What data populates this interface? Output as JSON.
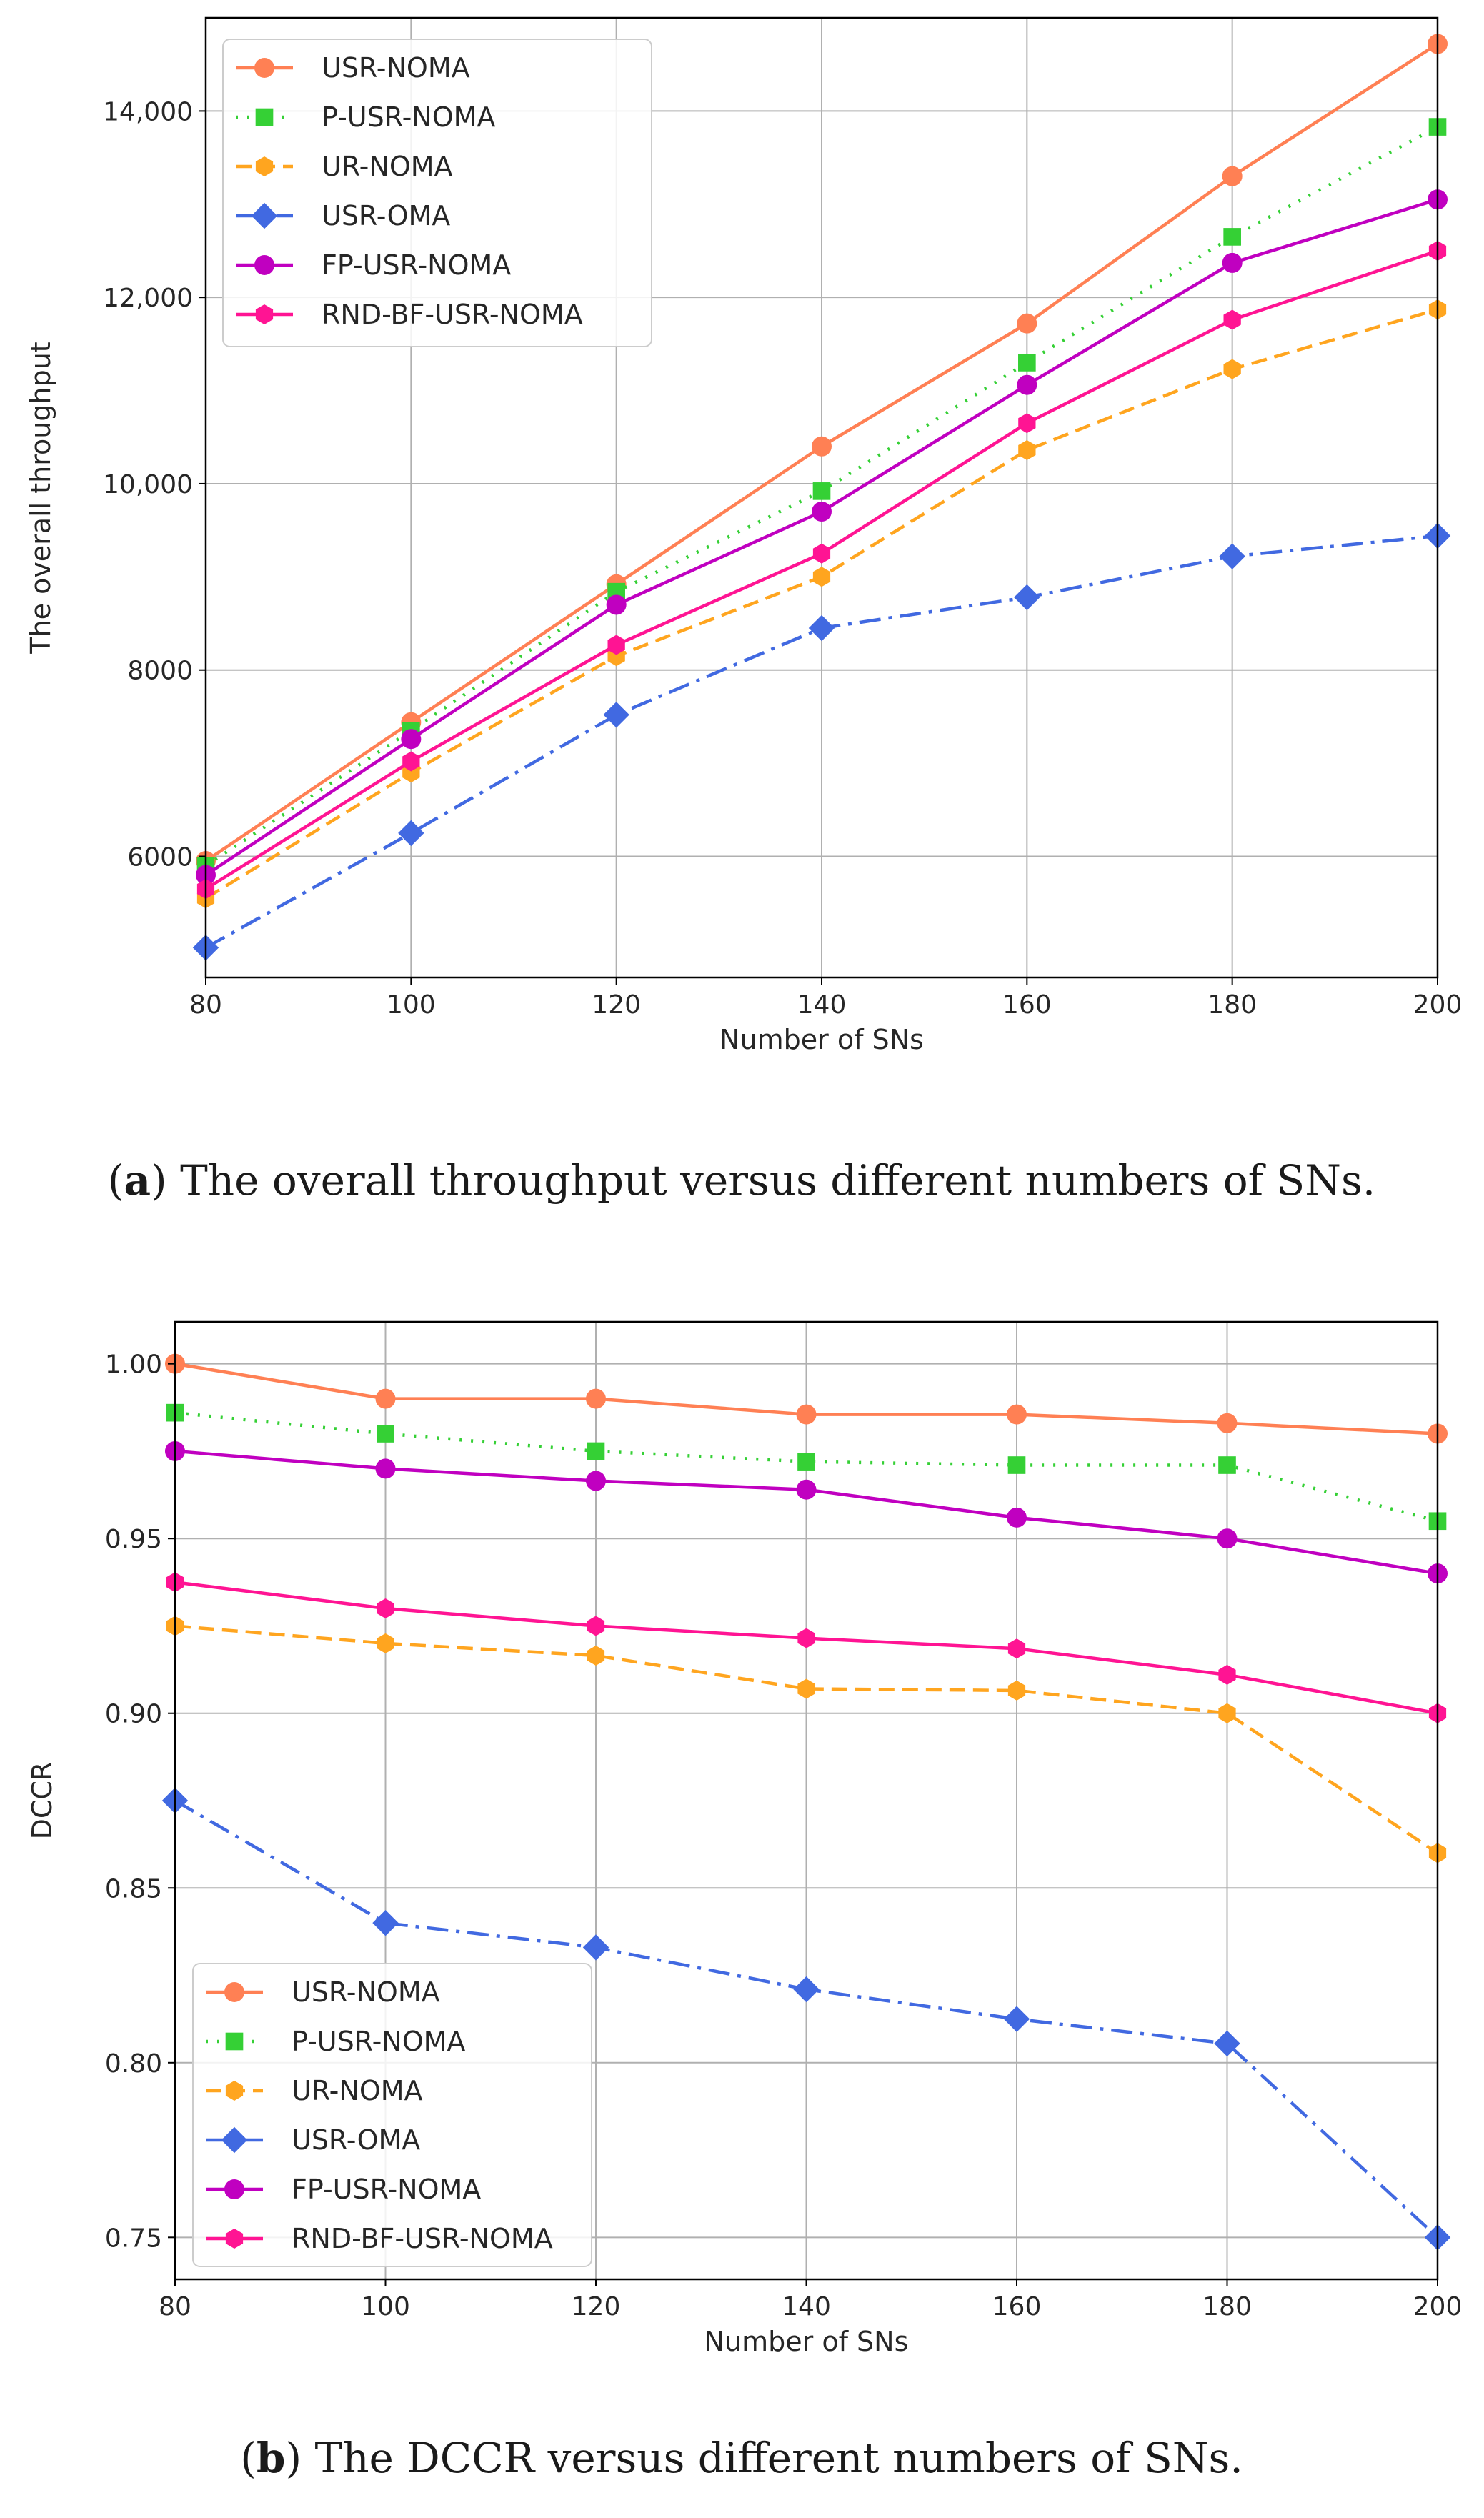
{
  "styles": {
    "USR-NOMA": {
      "color": "#ff8054",
      "dash": "",
      "marker": "circle"
    },
    "P-USR-NOMA": {
      "color": "#35d035",
      "dash": "3 13",
      "marker": "square"
    },
    "UR-NOMA": {
      "color": "#ffa51f",
      "dash": "22 11",
      "marker": "hexagon"
    },
    "USR-OMA": {
      "color": "#4169e1",
      "dash": "30 11 5 11",
      "marker": "diamond"
    },
    "FP-USR-NOMA": {
      "color": "#c000c0",
      "dash": "",
      "marker": "circle"
    },
    "RND-BF-USR-NOMA": {
      "color": "#ff1493",
      "dash": "",
      "marker": "hexagon"
    }
  },
  "chart_data": [
    {
      "type": "line",
      "x": [
        80,
        100,
        120,
        140,
        160,
        180,
        200
      ],
      "xlabel": "Number of SNs",
      "ylabel": "The overall throughput",
      "xlim": [
        80,
        200
      ],
      "ylim": [
        4700,
        15000
      ],
      "xticks": [
        "80",
        "100",
        "120",
        "140",
        "160",
        "180",
        "200"
      ],
      "yticks": [
        {
          "value": 6000,
          "label": "6000"
        },
        {
          "value": 8000,
          "label": "8000"
        },
        {
          "value": 10000,
          "label": "10,000"
        },
        {
          "value": 12000,
          "label": "12,000"
        },
        {
          "value": 14000,
          "label": "14,000"
        }
      ],
      "grid": true,
      "legend_position": "upper-left",
      "caption": {
        "prefix": "(",
        "bold": "a",
        "rest": ") The overall throughput versus different numbers of SNs."
      },
      "series": [
        {
          "name": "USR-NOMA",
          "values": [
            5950,
            7440,
            8920,
            10400,
            11720,
            13300,
            14720
          ]
        },
        {
          "name": "P-USR-NOMA",
          "values": [
            5900,
            7350,
            8840,
            9920,
            11300,
            12650,
            13830
          ]
        },
        {
          "name": "UR-NOMA",
          "values": [
            5550,
            6900,
            8150,
            9000,
            10360,
            11230,
            11870
          ]
        },
        {
          "name": "USR-OMA",
          "values": [
            5020,
            6250,
            7520,
            8450,
            8780,
            9220,
            9440
          ]
        },
        {
          "name": "FP-USR-NOMA",
          "values": [
            5800,
            7260,
            8700,
            9700,
            11060,
            12370,
            13050
          ]
        },
        {
          "name": "RND-BF-USR-NOMA",
          "values": [
            5650,
            7020,
            8270,
            9250,
            10650,
            11760,
            12500
          ]
        }
      ]
    },
    {
      "type": "line",
      "x": [
        80,
        100,
        120,
        140,
        160,
        180,
        200
      ],
      "xlabel": "Number of SNs",
      "ylabel": "DCCR",
      "xlim": [
        80,
        200
      ],
      "ylim": [
        0.738,
        1.012
      ],
      "xticks": [
        "80",
        "100",
        "120",
        "140",
        "160",
        "180",
        "200"
      ],
      "yticks": [
        {
          "value": 0.75,
          "label": "0.75"
        },
        {
          "value": 0.8,
          "label": "0.80"
        },
        {
          "value": 0.85,
          "label": "0.85"
        },
        {
          "value": 0.9,
          "label": "0.90"
        },
        {
          "value": 0.95,
          "label": "0.95"
        },
        {
          "value": 1.0,
          "label": "1.00"
        }
      ],
      "grid": true,
      "legend_position": "lower-left",
      "caption": {
        "prefix": "(",
        "bold": "b",
        "rest": ") The DCCR versus different numbers of SNs."
      },
      "series": [
        {
          "name": "USR-NOMA",
          "values": [
            1.0,
            0.99,
            0.99,
            0.9855,
            0.9855,
            0.983,
            0.98
          ]
        },
        {
          "name": "P-USR-NOMA",
          "values": [
            0.986,
            0.98,
            0.975,
            0.972,
            0.971,
            0.971,
            0.955
          ]
        },
        {
          "name": "UR-NOMA",
          "values": [
            0.925,
            0.92,
            0.9165,
            0.907,
            0.9065,
            0.9,
            0.86
          ]
        },
        {
          "name": "USR-OMA",
          "values": [
            0.875,
            0.84,
            0.833,
            0.821,
            0.8125,
            0.8055,
            0.75
          ]
        },
        {
          "name": "FP-USR-NOMA",
          "values": [
            0.975,
            0.97,
            0.9665,
            0.964,
            0.956,
            0.95,
            0.94
          ]
        },
        {
          "name": "RND-BF-USR-NOMA",
          "values": [
            0.9375,
            0.93,
            0.925,
            0.9215,
            0.9185,
            0.911,
            0.9
          ]
        }
      ]
    }
  ]
}
